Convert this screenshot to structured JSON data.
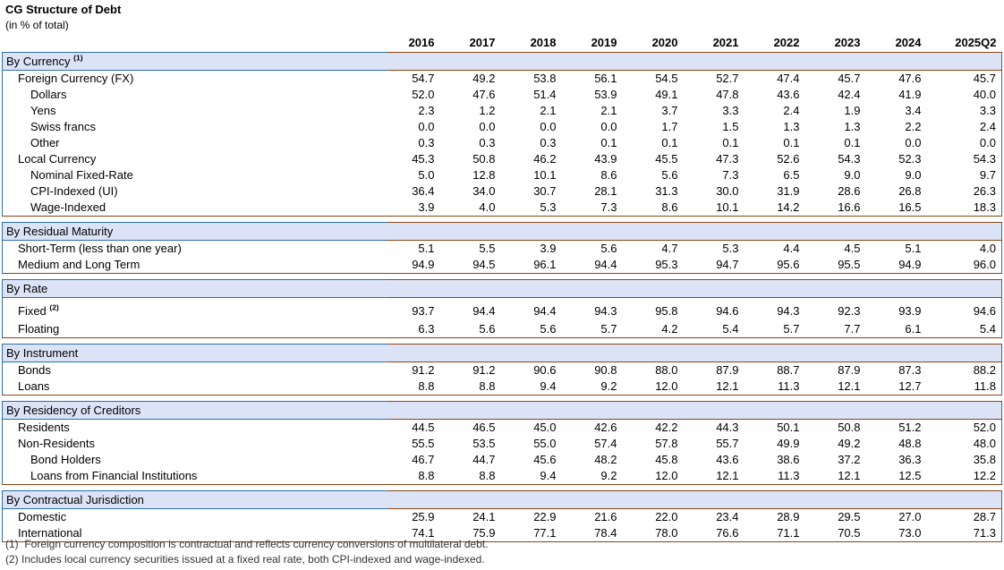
{
  "title": "CG Structure of Debt",
  "subtitle": "(in % of total)",
  "columns": [
    "2016",
    "2017",
    "2018",
    "2019",
    "2020",
    "2021",
    "2022",
    "2023",
    "2024",
    "2025Q2"
  ],
  "sections": [
    {
      "header": "By Currency",
      "sup": "(1)",
      "rows": [
        {
          "label": "Foreign Currency (FX)",
          "indent": 1,
          "values": [
            "54.7",
            "49.2",
            "53.8",
            "56.1",
            "54.5",
            "52.7",
            "47.4",
            "45.7",
            "47.6",
            "45.7"
          ]
        },
        {
          "label": "Dollars",
          "indent": 2,
          "values": [
            "52.0",
            "47.6",
            "51.4",
            "53.9",
            "49.1",
            "47.8",
            "43.6",
            "42.4",
            "41.9",
            "40.0"
          ]
        },
        {
          "label": "Yens",
          "indent": 2,
          "values": [
            "2.3",
            "1.2",
            "2.1",
            "2.1",
            "3.7",
            "3.3",
            "2.4",
            "1.9",
            "3.4",
            "3.3"
          ]
        },
        {
          "label": "Swiss francs",
          "indent": 2,
          "values": [
            "0.0",
            "0.0",
            "0.0",
            "0.0",
            "1.7",
            "1.5",
            "1.3",
            "1.3",
            "2.2",
            "2.4"
          ]
        },
        {
          "label": "Other",
          "indent": 2,
          "values": [
            "0.3",
            "0.3",
            "0.3",
            "0.1",
            "0.1",
            "0.1",
            "0.1",
            "0.1",
            "0.0",
            "0.0"
          ]
        },
        {
          "label": "Local Currency",
          "indent": 1,
          "values": [
            "45.3",
            "50.8",
            "46.2",
            "43.9",
            "45.5",
            "47.3",
            "52.6",
            "54.3",
            "52.3",
            "54.3"
          ]
        },
        {
          "label": "Nominal Fixed-Rate",
          "indent": 2,
          "values": [
            "5.0",
            "12.8",
            "10.1",
            "8.6",
            "5.6",
            "7.3",
            "6.5",
            "9.0",
            "9.0",
            "9.7"
          ]
        },
        {
          "label": "CPI-Indexed (UI)",
          "indent": 2,
          "values": [
            "36.4",
            "34.0",
            "30.7",
            "28.1",
            "31.3",
            "30.0",
            "31.9",
            "28.6",
            "26.8",
            "26.3"
          ]
        },
        {
          "label": "Wage-Indexed",
          "indent": 2,
          "values": [
            "3.9",
            "4.0",
            "5.3",
            "7.3",
            "8.6",
            "10.1",
            "14.2",
            "16.6",
            "16.5",
            "18.3"
          ]
        }
      ]
    },
    {
      "header": "By Residual Maturity",
      "rows": [
        {
          "label": "Short-Term (less than one year)",
          "indent": 1,
          "values": [
            "5.1",
            "5.5",
            "3.9",
            "5.6",
            "4.7",
            "5.3",
            "4.4",
            "4.5",
            "5.1",
            "4.0"
          ]
        },
        {
          "label": "Medium and Long Term",
          "indent": 1,
          "values": [
            "94.9",
            "94.5",
            "96.1",
            "94.4",
            "95.3",
            "94.7",
            "95.6",
            "95.5",
            "94.9",
            "96.0"
          ]
        }
      ]
    },
    {
      "header": "By Rate",
      "rows": [
        {
          "label": "Fixed",
          "sup": "(2)",
          "indent": 1,
          "tall": true,
          "values": [
            "93.7",
            "94.4",
            "94.4",
            "94.3",
            "95.8",
            "94.6",
            "94.3",
            "92.3",
            "93.9",
            "94.6"
          ]
        },
        {
          "label": "Floating",
          "indent": 1,
          "values": [
            "6.3",
            "5.6",
            "5.6",
            "5.7",
            "4.2",
            "5.4",
            "5.7",
            "7.7",
            "6.1",
            "5.4"
          ]
        }
      ]
    },
    {
      "header": "By Instrument",
      "rows": [
        {
          "label": "Bonds",
          "indent": 1,
          "values": [
            "91.2",
            "91.2",
            "90.6",
            "90.8",
            "88.0",
            "87.9",
            "88.7",
            "87.9",
            "87.3",
            "88.2"
          ]
        },
        {
          "label": "Loans",
          "indent": 1,
          "values": [
            "8.8",
            "8.8",
            "9.4",
            "9.2",
            "12.0",
            "12.1",
            "11.3",
            "12.1",
            "12.7",
            "11.8"
          ]
        }
      ]
    },
    {
      "header": "By Residency of Creditors",
      "rows": [
        {
          "label": "Residents",
          "indent": 1,
          "values": [
            "44.5",
            "46.5",
            "45.0",
            "42.6",
            "42.2",
            "44.3",
            "50.1",
            "50.8",
            "51.2",
            "52.0"
          ]
        },
        {
          "label": "Non-Residents",
          "indent": 1,
          "values": [
            "55.5",
            "53.5",
            "55.0",
            "57.4",
            "57.8",
            "55.7",
            "49.9",
            "49.2",
            "48.8",
            "48.0"
          ]
        },
        {
          "label": "Bond Holders",
          "indent": 2,
          "values": [
            "46.7",
            "44.7",
            "45.6",
            "48.2",
            "45.8",
            "43.6",
            "38.6",
            "37.2",
            "36.3",
            "35.8"
          ]
        },
        {
          "label": "Loans from Financial Institutions",
          "indent": 2,
          "values": [
            "8.8",
            "8.8",
            "9.4",
            "9.2",
            "12.0",
            "12.1",
            "11.3",
            "12.1",
            "12.5",
            "12.2"
          ]
        }
      ]
    },
    {
      "header": "By Contractual Jurisdiction",
      "rows": [
        {
          "label": "Domestic",
          "indent": 1,
          "values": [
            "25.9",
            "24.1",
            "22.9",
            "21.6",
            "22.0",
            "23.4",
            "28.9",
            "29.5",
            "27.0",
            "28.7"
          ]
        },
        {
          "label": "International",
          "indent": 1,
          "values": [
            "74.1",
            "75.9",
            "77.1",
            "78.4",
            "78.0",
            "76.6",
            "71.1",
            "70.5",
            "73.0",
            "71.3"
          ]
        }
      ]
    }
  ],
  "footnotes": [
    "(1)  Foreign currency composition is contractual and reflects currency conversions of multilateral debt.",
    "(2) Includes local currency securities issued at a fixed real rate, both CPI-indexed and wage-indexed."
  ],
  "colors": {
    "band_background": "#dce3f6",
    "brown_border": "#8a4513",
    "blue_border": "#2a6fae"
  }
}
